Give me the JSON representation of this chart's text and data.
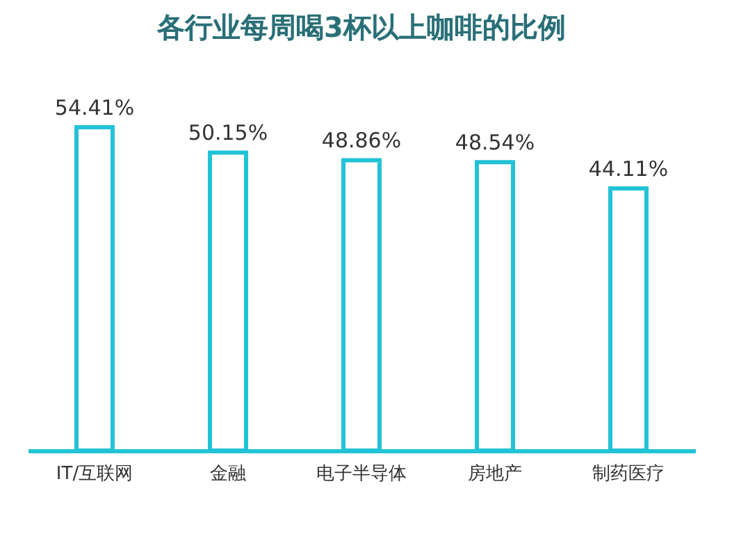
{
  "chart_data": {
    "type": "bar",
    "title": "各行业每周喝3杯以上咖啡的比例",
    "categories": [
      "IT/互联网",
      "金融",
      "电子半导体",
      "房地产",
      "制药医疗"
    ],
    "values": [
      54.41,
      50.15,
      48.86,
      48.54,
      44.11
    ],
    "value_labels": [
      "54.41%",
      "50.15%",
      "48.86%",
      "48.54%",
      "44.11%"
    ],
    "color": "#22c3d6"
  }
}
